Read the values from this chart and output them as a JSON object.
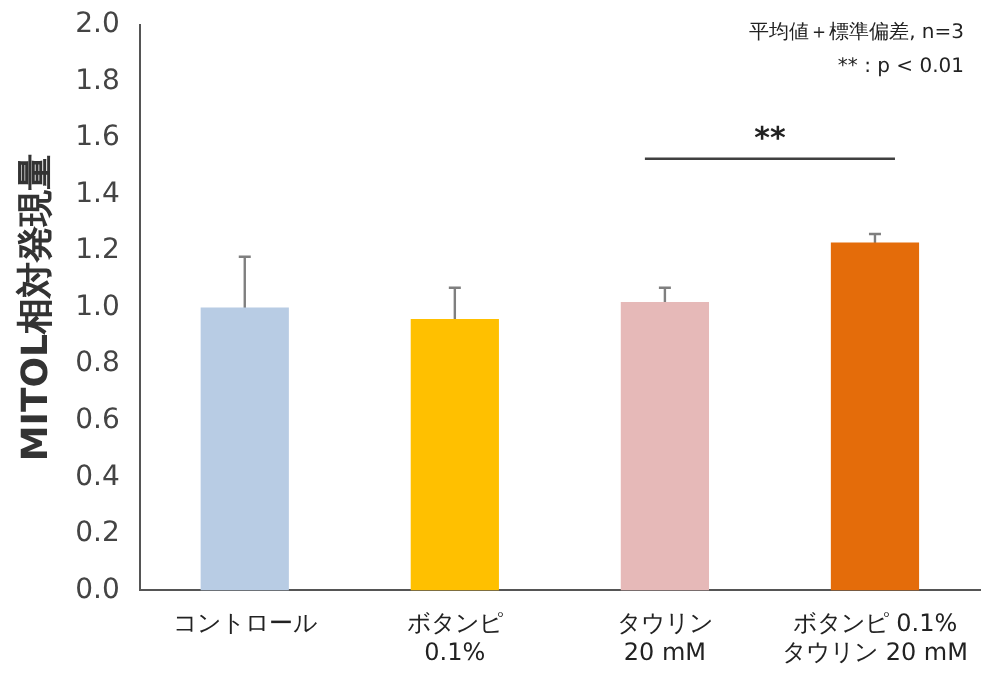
{
  "chart_data": {
    "type": "bar",
    "ylabel": "MITOL相対発現量",
    "categories": [
      "コントロール",
      "ボタンピ\n0.1%",
      "タウリン\n20 mM",
      "ボタンピ 0.1%\nタウリン 20 mM"
    ],
    "values": [
      1.0,
      0.96,
      1.02,
      1.23
    ],
    "colors": [
      "#b8cce4",
      "#ffc000",
      "#e6b9b8",
      "#e46c0a"
    ],
    "errors": [
      0.18,
      0.11,
      0.05,
      0.03
    ],
    "ylim": [
      0,
      2.0
    ],
    "yticks": [
      {
        "value": 0,
        "label": "0.0"
      },
      {
        "value": 0.2,
        "label": "0.2"
      },
      {
        "value": 0.4,
        "label": "0.4"
      },
      {
        "value": 0.6,
        "label": "0.6"
      },
      {
        "value": 0.8,
        "label": "0.8"
      },
      {
        "value": 1.0,
        "label": "1.0"
      },
      {
        "value": 1.2,
        "label": "1.2"
      },
      {
        "value": 1.4,
        "label": "1.4"
      },
      {
        "value": 1.6,
        "label": "1.6"
      },
      {
        "value": 1.8,
        "label": "1.8"
      },
      {
        "value": 2.0,
        "label": "2.0"
      }
    ],
    "grid": false,
    "legend": false,
    "annotations": [
      "平均値＋標準偏差, n=3",
      "** : p < 0.01",
      "**"
    ]
  }
}
